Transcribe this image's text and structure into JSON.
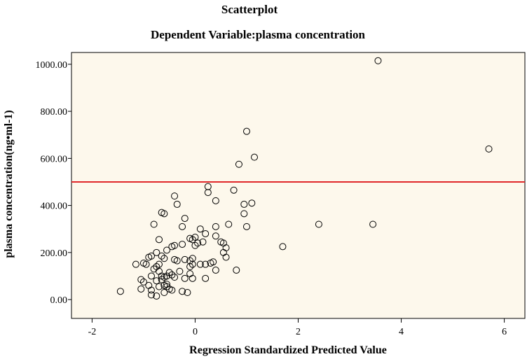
{
  "chart_data": {
    "type": "scatter",
    "title": "Scatterplot",
    "subtitle": "Dependent Variable:plasma concentration",
    "xlabel": "Regression Standardized Predicted Value",
    "ylabel": "plasma concentration(ng•ml-1)",
    "xlim": [
      -2.4,
      6.4
    ],
    "ylim": [
      -80,
      1050
    ],
    "xticks": [
      -2,
      0,
      2,
      4,
      6
    ],
    "xtick_labels": [
      "-2",
      "0",
      "2",
      "4",
      "6"
    ],
    "yticks": [
      0,
      200,
      400,
      600,
      800,
      1000
    ],
    "ytick_labels": [
      "0.00",
      "200.00",
      "400.00",
      "600.00",
      "800.00",
      "1000.00"
    ],
    "reference_line": {
      "axis": "y",
      "value": 500,
      "color": "#e0282a"
    },
    "colors": {
      "plot_bg": "#fdf8ec",
      "marker": "#000000"
    },
    "points": [
      [
        3.55,
        1015
      ],
      [
        5.7,
        640
      ],
      [
        1.0,
        715
      ],
      [
        1.15,
        605
      ],
      [
        0.85,
        575
      ],
      [
        0.25,
        480
      ],
      [
        0.25,
        455
      ],
      [
        0.75,
        465
      ],
      [
        0.4,
        420
      ],
      [
        -0.4,
        440
      ],
      [
        -0.35,
        405
      ],
      [
        0.95,
        405
      ],
      [
        1.1,
        410
      ],
      [
        0.95,
        365
      ],
      [
        1.0,
        310
      ],
      [
        2.4,
        320
      ],
      [
        3.45,
        320
      ],
      [
        1.7,
        225
      ],
      [
        0.65,
        320
      ],
      [
        0.4,
        310
      ],
      [
        -0.65,
        370
      ],
      [
        -0.6,
        365
      ],
      [
        -0.2,
        345
      ],
      [
        -0.8,
        320
      ],
      [
        -0.25,
        310
      ],
      [
        0.1,
        300
      ],
      [
        0.2,
        280
      ],
      [
        0.4,
        270
      ],
      [
        0.5,
        245
      ],
      [
        0.55,
        240
      ],
      [
        0.6,
        220
      ],
      [
        0.55,
        200
      ],
      [
        0.6,
        180
      ],
      [
        0.35,
        160
      ],
      [
        0.4,
        125
      ],
      [
        0.8,
        125
      ],
      [
        0.2,
        150
      ],
      [
        0.1,
        150
      ],
      [
        0.3,
        155
      ],
      [
        0.0,
        265
      ],
      [
        -0.05,
        255
      ],
      [
        -0.1,
        260
      ],
      [
        0.15,
        245
      ],
      [
        0.05,
        240
      ],
      [
        0.0,
        230
      ],
      [
        -0.25,
        235
      ],
      [
        -0.45,
        225
      ],
      [
        -0.4,
        230
      ],
      [
        -0.55,
        210
      ],
      [
        -0.7,
        255
      ],
      [
        -0.75,
        200
      ],
      [
        -0.65,
        185
      ],
      [
        -0.6,
        175
      ],
      [
        -0.4,
        170
      ],
      [
        -0.35,
        165
      ],
      [
        -0.2,
        170
      ],
      [
        -0.1,
        165
      ],
      [
        -0.05,
        175
      ],
      [
        -0.05,
        150
      ],
      [
        -0.1,
        140
      ],
      [
        -0.7,
        150
      ],
      [
        -0.75,
        140
      ],
      [
        -0.8,
        130
      ],
      [
        -0.85,
        185
      ],
      [
        -0.9,
        180
      ],
      [
        -1.0,
        155
      ],
      [
        -1.15,
        150
      ],
      [
        -0.95,
        150
      ],
      [
        -0.7,
        120
      ],
      [
        -0.5,
        115
      ],
      [
        -0.55,
        100
      ],
      [
        -0.45,
        105
      ],
      [
        -0.4,
        95
      ],
      [
        -0.3,
        120
      ],
      [
        -0.1,
        110
      ],
      [
        -0.05,
        90
      ],
      [
        -0.2,
        90
      ],
      [
        0.2,
        90
      ],
      [
        -0.6,
        95
      ],
      [
        -0.65,
        85
      ],
      [
        -0.75,
        80
      ],
      [
        -0.85,
        100
      ],
      [
        -1.05,
        85
      ],
      [
        -1.0,
        75
      ],
      [
        -0.9,
        60
      ],
      [
        -0.7,
        55
      ],
      [
        -0.6,
        60
      ],
      [
        -0.55,
        55
      ],
      [
        -0.45,
        40
      ],
      [
        -0.25,
        35
      ],
      [
        -0.15,
        30
      ],
      [
        -0.6,
        30
      ],
      [
        -0.5,
        45
      ],
      [
        -0.75,
        15
      ],
      [
        -0.85,
        20
      ],
      [
        -1.05,
        45
      ],
      [
        -1.45,
        35
      ],
      [
        -0.85,
        40
      ],
      [
        -0.65,
        100
      ],
      [
        -0.55,
        65
      ]
    ]
  }
}
